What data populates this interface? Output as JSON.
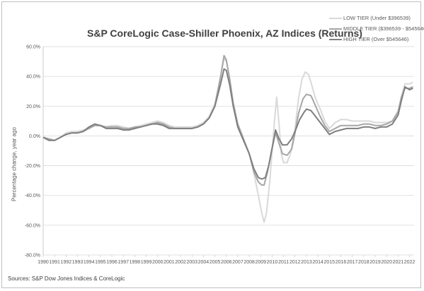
{
  "chart_data": {
    "type": "line",
    "title": "S&P CoreLogic Case-Shiller Phoenix, AZ Indices (Returns)",
    "xlabel": "",
    "ylabel": "Percentage change, year ago",
    "source": "Sources: S&P Dow Jones Indices & CoreLogic",
    "ylim": [
      -80,
      60
    ],
    "y_ticks": [
      "60.0%",
      "40.0%",
      "20.0%",
      "0.0%",
      "-20.0%",
      "-40.0%",
      "-60.0%",
      "-80.0%"
    ],
    "y_tick_values": [
      60,
      40,
      20,
      0,
      -20,
      -40,
      -60,
      -80
    ],
    "x_tick_labels": [
      "1990",
      "1991",
      "1992",
      "1993",
      "1994",
      "1995",
      "1996",
      "1997",
      "1998",
      "1999",
      "2000",
      "2001",
      "2002",
      "2003",
      "2004",
      "2005",
      "2006",
      "2007",
      "2008",
      "2009",
      "2010",
      "2011",
      "2012",
      "2013",
      "2014",
      "2015",
      "2016",
      "2017",
      "2018",
      "2019",
      "2020",
      "2021",
      "2022"
    ],
    "x_range": [
      1990,
      2022.4
    ],
    "grid": "horizontal",
    "legend_position": "top-right",
    "series": [
      {
        "name": "LOW TIER (Under $396539)",
        "color": "#d9d9d9",
        "points": [
          [
            1990.0,
            -1
          ],
          [
            1990.5,
            -2
          ],
          [
            1991.0,
            -3
          ],
          [
            1991.5,
            -1
          ],
          [
            1992.0,
            2
          ],
          [
            1992.5,
            3
          ],
          [
            1993.0,
            3
          ],
          [
            1993.5,
            4
          ],
          [
            1994.0,
            5
          ],
          [
            1994.5,
            7
          ],
          [
            1995.0,
            7
          ],
          [
            1995.5,
            6
          ],
          [
            1996.0,
            7
          ],
          [
            1996.5,
            7
          ],
          [
            1997.0,
            6
          ],
          [
            1997.5,
            5
          ],
          [
            1998.0,
            6
          ],
          [
            1998.5,
            7
          ],
          [
            1999.0,
            8
          ],
          [
            1999.5,
            9
          ],
          [
            2000.0,
            10
          ],
          [
            2000.5,
            9
          ],
          [
            2001.0,
            7
          ],
          [
            2001.5,
            6
          ],
          [
            2002.0,
            6
          ],
          [
            2002.5,
            6
          ],
          [
            2003.0,
            6
          ],
          [
            2003.5,
            7
          ],
          [
            2004.0,
            9
          ],
          [
            2004.5,
            13
          ],
          [
            2005.0,
            22
          ],
          [
            2005.5,
            40
          ],
          [
            2005.8,
            52
          ],
          [
            2006.0,
            50
          ],
          [
            2006.3,
            38
          ],
          [
            2006.6,
            22
          ],
          [
            2007.0,
            8
          ],
          [
            2007.5,
            -2
          ],
          [
            2008.0,
            -12
          ],
          [
            2008.4,
            -25
          ],
          [
            2008.8,
            -40
          ],
          [
            2009.1,
            -52
          ],
          [
            2009.3,
            -58
          ],
          [
            2009.5,
            -52
          ],
          [
            2009.8,
            -30
          ],
          [
            2010.0,
            -10
          ],
          [
            2010.2,
            10
          ],
          [
            2010.4,
            26
          ],
          [
            2010.6,
            8
          ],
          [
            2010.8,
            -12
          ],
          [
            2011.0,
            -18
          ],
          [
            2011.3,
            -18
          ],
          [
            2011.6,
            -12
          ],
          [
            2012.0,
            5
          ],
          [
            2012.3,
            25
          ],
          [
            2012.6,
            38
          ],
          [
            2012.9,
            43
          ],
          [
            2013.2,
            41
          ],
          [
            2013.5,
            33
          ],
          [
            2013.8,
            25
          ],
          [
            2014.2,
            18
          ],
          [
            2014.6,
            10
          ],
          [
            2015.0,
            5
          ],
          [
            2015.5,
            9
          ],
          [
            2016.0,
            11
          ],
          [
            2016.5,
            11
          ],
          [
            2017.0,
            10
          ],
          [
            2017.5,
            10
          ],
          [
            2018.0,
            10
          ],
          [
            2018.5,
            10
          ],
          [
            2019.0,
            9
          ],
          [
            2019.5,
            9
          ],
          [
            2020.0,
            9
          ],
          [
            2020.5,
            10
          ],
          [
            2021.0,
            17
          ],
          [
            2021.3,
            27
          ],
          [
            2021.6,
            35
          ],
          [
            2022.0,
            35
          ],
          [
            2022.3,
            36
          ]
        ]
      },
      {
        "name": "MIDDLE TIER ($396539 - $545646)",
        "color": "#a6a6a6",
        "points": [
          [
            1990.0,
            -1
          ],
          [
            1990.5,
            -2
          ],
          [
            1991.0,
            -3
          ],
          [
            1991.5,
            -1
          ],
          [
            1992.0,
            1
          ],
          [
            1992.5,
            2
          ],
          [
            1993.0,
            2
          ],
          [
            1993.5,
            3
          ],
          [
            1994.0,
            5
          ],
          [
            1994.5,
            7
          ],
          [
            1995.0,
            7
          ],
          [
            1995.5,
            6
          ],
          [
            1996.0,
            6
          ],
          [
            1996.5,
            6
          ],
          [
            1997.0,
            5
          ],
          [
            1997.5,
            5
          ],
          [
            1998.0,
            6
          ],
          [
            1998.5,
            6
          ],
          [
            1999.0,
            7
          ],
          [
            1999.5,
            8
          ],
          [
            2000.0,
            9
          ],
          [
            2000.5,
            8
          ],
          [
            2001.0,
            6
          ],
          [
            2001.5,
            5
          ],
          [
            2002.0,
            5
          ],
          [
            2002.5,
            5
          ],
          [
            2003.0,
            5
          ],
          [
            2003.5,
            6
          ],
          [
            2004.0,
            8
          ],
          [
            2004.5,
            12
          ],
          [
            2005.0,
            20
          ],
          [
            2005.5,
            40
          ],
          [
            2005.8,
            54
          ],
          [
            2006.0,
            51
          ],
          [
            2006.3,
            38
          ],
          [
            2006.6,
            22
          ],
          [
            2007.0,
            8
          ],
          [
            2007.5,
            -2
          ],
          [
            2008.0,
            -12
          ],
          [
            2008.4,
            -24
          ],
          [
            2008.8,
            -31
          ],
          [
            2009.1,
            -33
          ],
          [
            2009.3,
            -33
          ],
          [
            2009.6,
            -24
          ],
          [
            2010.0,
            -8
          ],
          [
            2010.3,
            2
          ],
          [
            2010.6,
            -5
          ],
          [
            2010.9,
            -12
          ],
          [
            2011.3,
            -13
          ],
          [
            2011.7,
            -9
          ],
          [
            2012.0,
            2
          ],
          [
            2012.3,
            15
          ],
          [
            2012.7,
            25
          ],
          [
            2013.0,
            28
          ],
          [
            2013.4,
            27
          ],
          [
            2013.8,
            20
          ],
          [
            2014.2,
            13
          ],
          [
            2014.6,
            7
          ],
          [
            2015.0,
            3
          ],
          [
            2015.5,
            5
          ],
          [
            2016.0,
            7
          ],
          [
            2016.5,
            7
          ],
          [
            2017.0,
            7
          ],
          [
            2017.5,
            7
          ],
          [
            2018.0,
            8
          ],
          [
            2018.5,
            8
          ],
          [
            2019.0,
            7
          ],
          [
            2019.5,
            7
          ],
          [
            2020.0,
            8
          ],
          [
            2020.5,
            10
          ],
          [
            2021.0,
            16
          ],
          [
            2021.3,
            26
          ],
          [
            2021.6,
            32
          ],
          [
            2022.0,
            32
          ],
          [
            2022.3,
            33
          ]
        ]
      },
      {
        "name": "HIGH TIER (Over $545646)",
        "color": "#7f7f7f",
        "points": [
          [
            1990.0,
            -1
          ],
          [
            1990.5,
            -3
          ],
          [
            1991.0,
            -3
          ],
          [
            1991.5,
            -1
          ],
          [
            1992.0,
            1
          ],
          [
            1992.5,
            2
          ],
          [
            1993.0,
            2
          ],
          [
            1993.5,
            3
          ],
          [
            1994.0,
            6
          ],
          [
            1994.5,
            8
          ],
          [
            1995.0,
            7
          ],
          [
            1995.5,
            5
          ],
          [
            1996.0,
            5
          ],
          [
            1996.5,
            5
          ],
          [
            1997.0,
            4
          ],
          [
            1997.5,
            4
          ],
          [
            1998.0,
            5
          ],
          [
            1998.5,
            6
          ],
          [
            1999.0,
            7
          ],
          [
            1999.5,
            8
          ],
          [
            2000.0,
            8
          ],
          [
            2000.5,
            7
          ],
          [
            2001.0,
            5
          ],
          [
            2001.5,
            5
          ],
          [
            2002.0,
            5
          ],
          [
            2002.5,
            5
          ],
          [
            2003.0,
            5
          ],
          [
            2003.5,
            6
          ],
          [
            2004.0,
            8
          ],
          [
            2004.5,
            12
          ],
          [
            2005.0,
            20
          ],
          [
            2005.5,
            35
          ],
          [
            2005.8,
            45
          ],
          [
            2006.0,
            44
          ],
          [
            2006.3,
            34
          ],
          [
            2006.6,
            20
          ],
          [
            2007.0,
            6
          ],
          [
            2007.5,
            -3
          ],
          [
            2008.0,
            -12
          ],
          [
            2008.4,
            -22
          ],
          [
            2008.8,
            -28
          ],
          [
            2009.1,
            -29
          ],
          [
            2009.4,
            -28
          ],
          [
            2009.7,
            -20
          ],
          [
            2010.0,
            -8
          ],
          [
            2010.3,
            4
          ],
          [
            2010.6,
            -2
          ],
          [
            2010.9,
            -6
          ],
          [
            2011.3,
            -6
          ],
          [
            2011.7,
            -2
          ],
          [
            2012.0,
            3
          ],
          [
            2012.4,
            11
          ],
          [
            2012.8,
            16
          ],
          [
            2013.0,
            18
          ],
          [
            2013.4,
            17
          ],
          [
            2013.8,
            13
          ],
          [
            2014.2,
            9
          ],
          [
            2014.6,
            5
          ],
          [
            2015.0,
            1
          ],
          [
            2015.5,
            3
          ],
          [
            2016.0,
            4
          ],
          [
            2016.5,
            5
          ],
          [
            2017.0,
            5
          ],
          [
            2017.5,
            5
          ],
          [
            2018.0,
            6
          ],
          [
            2018.5,
            6
          ],
          [
            2019.0,
            5
          ],
          [
            2019.5,
            6
          ],
          [
            2020.0,
            6
          ],
          [
            2020.5,
            8
          ],
          [
            2021.0,
            14
          ],
          [
            2021.3,
            24
          ],
          [
            2021.6,
            33
          ],
          [
            2022.0,
            31
          ],
          [
            2022.3,
            32
          ]
        ]
      }
    ]
  }
}
